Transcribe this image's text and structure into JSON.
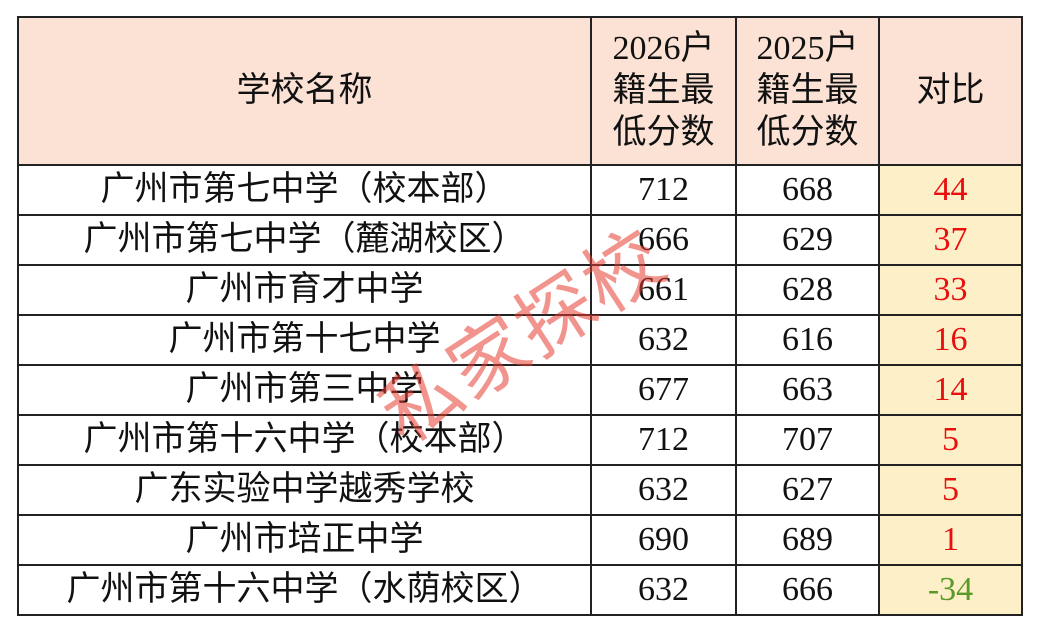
{
  "table": {
    "header": [
      "学校名称",
      [
        "2026户",
        "籍生最",
        "低分数"
      ],
      [
        "2025户",
        "籍生最",
        "低分数"
      ],
      "对比"
    ],
    "rows": [
      [
        "广州市第七中学（校本部）",
        712,
        668,
        44
      ],
      [
        "广州市第七中学（麓湖校区）",
        666,
        629,
        37
      ],
      [
        "广州市育才中学",
        661,
        628,
        33
      ],
      [
        "广州市第十七中学",
        632,
        616,
        16
      ],
      [
        "广州市第三中学",
        677,
        663,
        14
      ],
      [
        "广州市第十六中学（校本部）",
        712,
        707,
        5
      ],
      [
        "广东实验中学越秀学校",
        632,
        627,
        5
      ],
      [
        "广州市培正中学",
        690,
        689,
        1
      ],
      [
        "广州市第十六中学（水荫校区）",
        632,
        666,
        -34
      ]
    ]
  },
  "watermark": "私家探校"
}
